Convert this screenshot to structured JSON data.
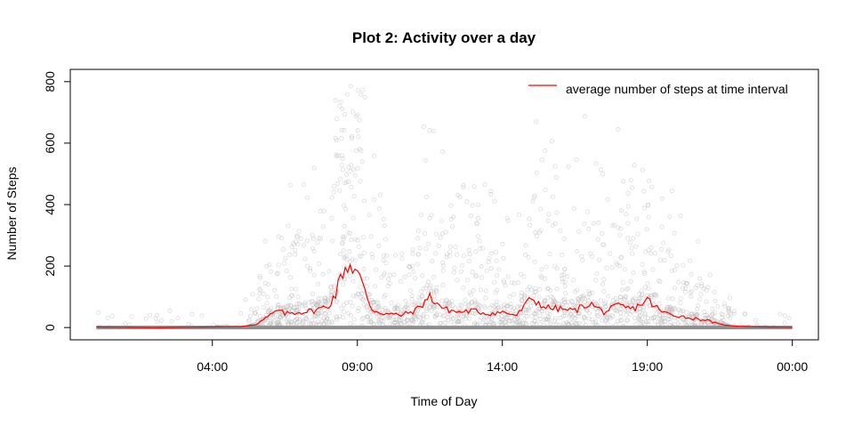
{
  "chart_data": {
    "type": "scatter",
    "title": "Plot 2: Activity over a day",
    "xlabel": "Time of Day",
    "ylabel": "Number of Steps",
    "x_ticks": [
      "04:00",
      "09:00",
      "14:00",
      "19:00",
      "00:00"
    ],
    "x_tick_hours": [
      4,
      9,
      14,
      19,
      24
    ],
    "xlim_hours": [
      -0.9,
      24.9
    ],
    "y_ticks": [
      0,
      200,
      400,
      600,
      800
    ],
    "ylim": [
      -40,
      840
    ],
    "grid": false,
    "legend": {
      "position": "top-right",
      "entries": [
        "average number of steps at time interval"
      ]
    },
    "colors": {
      "points": "#bebebe",
      "average_line": "#ff0000",
      "zero_band": "#8c8c8c"
    },
    "scatter_series": {
      "name": "",
      "description_y_range": [
        0,
        806
      ]
    },
    "series": [
      {
        "name": "average number of steps at time interval",
        "x_hours": [
          0,
          1,
          2,
          3,
          4,
          5,
          5.5,
          6,
          6.25,
          6.5,
          7,
          7.5,
          8,
          8.25,
          8.5,
          8.75,
          9,
          9.25,
          9.5,
          9.75,
          10,
          10.5,
          11,
          11.5,
          12,
          12.5,
          13,
          13.5,
          14,
          14.5,
          15,
          15.5,
          16,
          16.5,
          17,
          17.5,
          18,
          18.5,
          19,
          19.5,
          20,
          20.5,
          21,
          21.5,
          22,
          22.5,
          23,
          24
        ],
        "values": [
          2,
          1,
          0,
          1,
          2,
          3,
          10,
          40,
          55,
          45,
          50,
          55,
          70,
          110,
          185,
          206,
          180,
          120,
          60,
          50,
          45,
          40,
          55,
          100,
          60,
          50,
          55,
          45,
          50,
          40,
          95,
          65,
          60,
          55,
          80,
          50,
          70,
          60,
          90,
          50,
          40,
          30,
          25,
          10,
          5,
          3,
          2,
          1
        ]
      }
    ]
  }
}
